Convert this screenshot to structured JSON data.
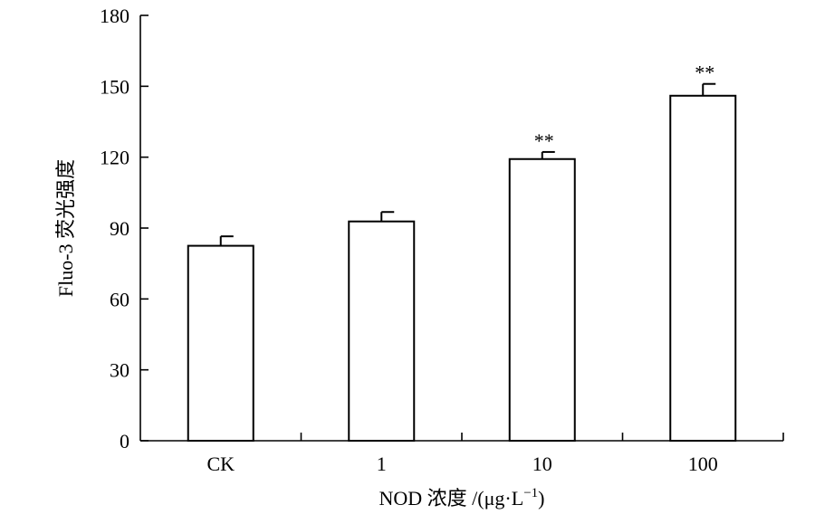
{
  "chart_data": {
    "type": "bar",
    "title": "",
    "xlabel": "NOD 浓度 /(μg·L",
    "xlabel_superscript": "−1",
    "xlabel_suffix": ")",
    "ylabel": "Fluo-3 荧光强度",
    "categories": [
      "CK",
      "1",
      "10",
      "100"
    ],
    "values": [
      82.5,
      92.8,
      119.2,
      146.0
    ],
    "errors": [
      4,
      4,
      3,
      5
    ],
    "significance": [
      "",
      "",
      "**",
      "**"
    ],
    "ylim": [
      0,
      180
    ],
    "yticks": [
      "0",
      "30",
      "60",
      "90",
      "120",
      "150",
      "180"
    ],
    "grid": false,
    "legend": "none",
    "bar_fill": "#ffffff",
    "bar_stroke": "#000000"
  }
}
